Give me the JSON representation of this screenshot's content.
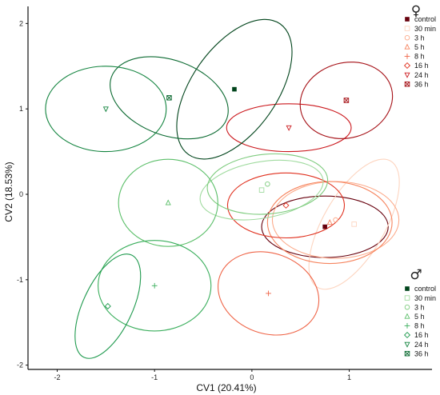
{
  "chart_data": {
    "type": "scatter",
    "xlabel": "CV1 (20.41%)",
    "ylabel": "CV2 (18.53%)",
    "xlim": [
      -2.3,
      1.85
    ],
    "ylim": [
      -2.05,
      2.2
    ],
    "xticks": [
      -2,
      -1,
      0,
      1
    ],
    "xtick_labels": [
      "-2",
      "-1",
      "0",
      "1"
    ],
    "yticks": [
      -2,
      -1,
      0,
      1,
      2
    ],
    "ytick_labels": [
      "-2",
      "-1",
      "0",
      "1",
      "2"
    ],
    "grid": false,
    "legends": [
      {
        "symbol": "♀",
        "placement": "top-right",
        "entries": [
          {
            "label": "control",
            "marker": "square-filled",
            "color": "#67000d"
          },
          {
            "label": "30 min",
            "marker": "square",
            "color": "#fdd5c0"
          },
          {
            "label": "3 h",
            "marker": "circle",
            "color": "#fcaa8a"
          },
          {
            "label": "5 h",
            "marker": "triangle",
            "color": "#f6845e"
          },
          {
            "label": "8 h",
            "marker": "plus",
            "color": "#ef6548"
          },
          {
            "label": "16 h",
            "marker": "diamond",
            "color": "#e0301e"
          },
          {
            "label": "24 h",
            "marker": "triangle-down",
            "color": "#cb181d"
          },
          {
            "label": "36 h",
            "marker": "square-x",
            "color": "#a50f15"
          }
        ]
      },
      {
        "symbol": "♂",
        "placement": "bottom-right",
        "entries": [
          {
            "label": "control",
            "marker": "square-filled",
            "color": "#00441b"
          },
          {
            "label": "30 min",
            "marker": "square",
            "color": "#a1dba0"
          },
          {
            "label": "3 h",
            "marker": "circle",
            "color": "#7fcc7f"
          },
          {
            "label": "5 h",
            "marker": "triangle",
            "color": "#5cbf6a"
          },
          {
            "label": "8 h",
            "marker": "plus",
            "color": "#3aae5c"
          },
          {
            "label": "16 h",
            "marker": "diamond",
            "color": "#1f9a4e"
          },
          {
            "label": "24 h",
            "marker": "triangle-down",
            "color": "#13843f"
          },
          {
            "label": "36 h",
            "marker": "square-x",
            "color": "#0b6a31"
          }
        ]
      }
    ],
    "series": [
      {
        "sex": "female",
        "group": "control",
        "marker": "square-filled",
        "color": "#67000d",
        "centroid": [
          0.75,
          -0.38
        ],
        "ellipse": {
          "rx": 0.65,
          "ry": 0.36,
          "angle": 0
        }
      },
      {
        "sex": "female",
        "group": "30 min",
        "marker": "square",
        "color": "#fdd5c0",
        "centroid": [
          1.05,
          -0.35
        ],
        "ellipse": {
          "rx": 0.75,
          "ry": 0.36,
          "angle": -60
        }
      },
      {
        "sex": "female",
        "group": "3 h",
        "marker": "circle",
        "color": "#fcaa8a",
        "centroid": [
          0.86,
          -0.3
        ],
        "ellipse": {
          "rx": 0.65,
          "ry": 0.45,
          "angle": 0
        }
      },
      {
        "sex": "female",
        "group": "5 h",
        "marker": "triangle",
        "color": "#f6845e",
        "centroid": [
          0.8,
          -0.33
        ],
        "ellipse": {
          "rx": 0.64,
          "ry": 0.48,
          "angle": 0
        }
      },
      {
        "sex": "female",
        "group": "8 h",
        "marker": "plus",
        "color": "#ef6548",
        "centroid": [
          0.17,
          -1.16
        ],
        "ellipse": {
          "rx": 0.53,
          "ry": 0.47,
          "angle": 20
        }
      },
      {
        "sex": "female",
        "group": "16 h",
        "marker": "diamond",
        "color": "#e0301e",
        "centroid": [
          0.35,
          -0.13
        ],
        "ellipse": {
          "rx": 0.6,
          "ry": 0.38,
          "angle": 0
        }
      },
      {
        "sex": "female",
        "group": "24 h",
        "marker": "triangle-down",
        "color": "#cb181d",
        "centroid": [
          0.38,
          0.78
        ],
        "ellipse": {
          "rx": 0.64,
          "ry": 0.28,
          "angle": 0
        }
      },
      {
        "sex": "female",
        "group": "36 h",
        "marker": "square-x",
        "color": "#a50f15",
        "centroid": [
          0.97,
          1.1
        ],
        "ellipse": {
          "rx": 0.48,
          "ry": 0.44,
          "angle": -15
        }
      },
      {
        "sex": "male",
        "group": "control",
        "marker": "square-filled",
        "color": "#00441b",
        "centroid": [
          -0.18,
          1.23
        ],
        "ellipse": {
          "rx": 0.82,
          "ry": 0.5,
          "angle": -55
        }
      },
      {
        "sex": "male",
        "group": "30 min",
        "marker": "square",
        "color": "#a1dba0",
        "centroid": [
          0.1,
          0.05
        ],
        "ellipse": {
          "rx": 0.64,
          "ry": 0.33,
          "angle": -10
        }
      },
      {
        "sex": "male",
        "group": "3 h",
        "marker": "circle",
        "color": "#7fcc7f",
        "centroid": [
          0.16,
          0.12
        ],
        "ellipse": {
          "rx": 0.62,
          "ry": 0.35,
          "angle": -5
        }
      },
      {
        "sex": "male",
        "group": "5 h",
        "marker": "triangle",
        "color": "#5cbf6a",
        "centroid": [
          -0.86,
          -0.1
        ],
        "ellipse": {
          "rx": 0.51,
          "ry": 0.51,
          "angle": 0
        }
      },
      {
        "sex": "male",
        "group": "8 h",
        "marker": "plus",
        "color": "#3aae5c",
        "centroid": [
          -1.0,
          -1.07
        ],
        "ellipse": {
          "rx": 0.58,
          "ry": 0.53,
          "angle": 0
        }
      },
      {
        "sex": "male",
        "group": "16 h",
        "marker": "diamond",
        "color": "#1f9a4e",
        "centroid": [
          -1.48,
          -1.31
        ],
        "ellipse": {
          "rx": 0.58,
          "ry": 0.29,
          "angle": -65
        }
      },
      {
        "sex": "male",
        "group": "24 h",
        "marker": "triangle-down",
        "color": "#13843f",
        "centroid": [
          -1.5,
          1.0
        ],
        "ellipse": {
          "rx": 0.62,
          "ry": 0.5,
          "angle": 0
        }
      },
      {
        "sex": "male",
        "group": "36 h",
        "marker": "square-x",
        "color": "#0b6a31",
        "centroid": [
          -0.85,
          1.13
        ],
        "ellipse": {
          "rx": 0.63,
          "ry": 0.44,
          "angle": 20
        }
      }
    ]
  }
}
